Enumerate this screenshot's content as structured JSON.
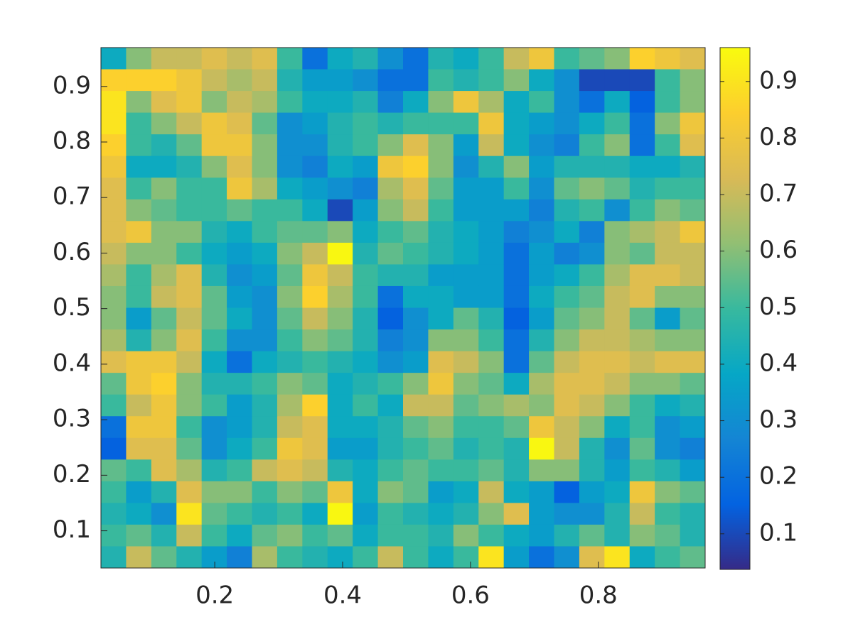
{
  "chart_data": {
    "type": "heatmap",
    "xlim": [
      0.022,
      0.967
    ],
    "ylim": [
      0.033,
      0.97
    ],
    "xticks": [
      0.2,
      0.4,
      0.6,
      0.8
    ],
    "yticks": [
      0.1,
      0.2,
      0.3,
      0.4,
      0.5,
      0.6,
      0.7,
      0.8,
      0.9
    ],
    "clim": [
      0.037,
      0.96
    ],
    "cticks": [
      0.1,
      0.2,
      0.3,
      0.4,
      0.5,
      0.6,
      0.7,
      0.8,
      0.9
    ],
    "colormap": [
      "#352a87",
      "#0363e1",
      "#1485d4",
      "#06a7c6",
      "#38b99e",
      "#92bf73",
      "#d9ba56",
      "#fcce2e",
      "#f9fb0e"
    ],
    "z": [
      [
        0.4,
        0.6,
        0.7,
        0.7,
        0.75,
        0.7,
        0.75,
        0.5,
        0.2,
        0.4,
        0.45,
        0.3,
        0.2,
        0.45,
        0.4,
        0.5,
        0.7,
        0.8,
        0.5,
        0.55,
        0.6,
        0.85,
        0.8,
        0.75
      ],
      [
        0.85,
        0.85,
        0.85,
        0.8,
        0.7,
        0.65,
        0.7,
        0.45,
        0.35,
        0.35,
        0.3,
        0.2,
        0.2,
        0.5,
        0.45,
        0.5,
        0.6,
        0.4,
        0.3,
        0.1,
        0.1,
        0.1,
        0.5,
        0.6
      ],
      [
        0.9,
        0.6,
        0.75,
        0.8,
        0.6,
        0.7,
        0.65,
        0.5,
        0.4,
        0.4,
        0.45,
        0.25,
        0.4,
        0.6,
        0.8,
        0.65,
        0.4,
        0.5,
        0.3,
        0.2,
        0.4,
        0.15,
        0.5,
        0.6
      ],
      [
        0.9,
        0.5,
        0.6,
        0.7,
        0.8,
        0.75,
        0.55,
        0.3,
        0.35,
        0.45,
        0.5,
        0.45,
        0.5,
        0.5,
        0.5,
        0.8,
        0.4,
        0.35,
        0.3,
        0.4,
        0.5,
        0.2,
        0.6,
        0.8
      ],
      [
        0.85,
        0.5,
        0.45,
        0.55,
        0.8,
        0.8,
        0.6,
        0.3,
        0.3,
        0.45,
        0.5,
        0.6,
        0.75,
        0.6,
        0.35,
        0.7,
        0.4,
        0.3,
        0.25,
        0.5,
        0.6,
        0.2,
        0.5,
        0.75
      ],
      [
        0.8,
        0.4,
        0.4,
        0.45,
        0.6,
        0.75,
        0.6,
        0.3,
        0.25,
        0.4,
        0.35,
        0.8,
        0.85,
        0.6,
        0.3,
        0.45,
        0.6,
        0.35,
        0.45,
        0.45,
        0.45,
        0.4,
        0.4,
        0.45
      ],
      [
        0.75,
        0.5,
        0.6,
        0.5,
        0.5,
        0.8,
        0.65,
        0.4,
        0.35,
        0.3,
        0.25,
        0.65,
        0.75,
        0.55,
        0.35,
        0.35,
        0.5,
        0.3,
        0.55,
        0.6,
        0.55,
        0.45,
        0.5,
        0.5
      ],
      [
        0.75,
        0.6,
        0.55,
        0.5,
        0.5,
        0.55,
        0.5,
        0.5,
        0.4,
        0.1,
        0.35,
        0.6,
        0.7,
        0.5,
        0.35,
        0.35,
        0.35,
        0.25,
        0.45,
        0.5,
        0.3,
        0.5,
        0.6,
        0.55
      ],
      [
        0.75,
        0.8,
        0.6,
        0.6,
        0.45,
        0.4,
        0.5,
        0.55,
        0.55,
        0.6,
        0.4,
        0.5,
        0.55,
        0.45,
        0.4,
        0.35,
        0.25,
        0.3,
        0.4,
        0.25,
        0.6,
        0.65,
        0.7,
        0.8
      ],
      [
        0.7,
        0.6,
        0.6,
        0.5,
        0.4,
        0.35,
        0.4,
        0.6,
        0.7,
        0.95,
        0.45,
        0.55,
        0.5,
        0.45,
        0.4,
        0.35,
        0.2,
        0.35,
        0.25,
        0.3,
        0.6,
        0.55,
        0.7,
        0.7
      ],
      [
        0.65,
        0.5,
        0.65,
        0.75,
        0.45,
        0.3,
        0.35,
        0.55,
        0.8,
        0.7,
        0.5,
        0.45,
        0.45,
        0.35,
        0.35,
        0.35,
        0.2,
        0.35,
        0.4,
        0.5,
        0.65,
        0.75,
        0.75,
        0.7
      ],
      [
        0.6,
        0.5,
        0.7,
        0.75,
        0.55,
        0.35,
        0.3,
        0.6,
        0.85,
        0.65,
        0.5,
        0.2,
        0.4,
        0.4,
        0.35,
        0.35,
        0.2,
        0.4,
        0.5,
        0.55,
        0.7,
        0.75,
        0.6,
        0.6
      ],
      [
        0.6,
        0.35,
        0.55,
        0.7,
        0.55,
        0.4,
        0.3,
        0.55,
        0.7,
        0.6,
        0.45,
        0.15,
        0.3,
        0.4,
        0.55,
        0.45,
        0.15,
        0.35,
        0.55,
        0.6,
        0.7,
        0.55,
        0.35,
        0.55
      ],
      [
        0.65,
        0.45,
        0.6,
        0.75,
        0.5,
        0.3,
        0.3,
        0.5,
        0.6,
        0.55,
        0.45,
        0.25,
        0.3,
        0.6,
        0.6,
        0.5,
        0.2,
        0.45,
        0.6,
        0.7,
        0.7,
        0.65,
        0.6,
        0.6
      ],
      [
        0.75,
        0.8,
        0.8,
        0.7,
        0.4,
        0.2,
        0.4,
        0.45,
        0.5,
        0.45,
        0.4,
        0.3,
        0.35,
        0.75,
        0.7,
        0.6,
        0.2,
        0.55,
        0.7,
        0.75,
        0.75,
        0.7,
        0.75,
        0.75
      ],
      [
        0.55,
        0.8,
        0.85,
        0.6,
        0.45,
        0.45,
        0.5,
        0.6,
        0.55,
        0.4,
        0.45,
        0.5,
        0.6,
        0.8,
        0.6,
        0.55,
        0.4,
        0.65,
        0.75,
        0.75,
        0.7,
        0.6,
        0.6,
        0.55
      ],
      [
        0.5,
        0.7,
        0.8,
        0.6,
        0.5,
        0.35,
        0.45,
        0.65,
        0.85,
        0.4,
        0.5,
        0.4,
        0.7,
        0.7,
        0.55,
        0.6,
        0.65,
        0.6,
        0.75,
        0.7,
        0.6,
        0.5,
        0.4,
        0.45
      ],
      [
        0.2,
        0.8,
        0.8,
        0.5,
        0.3,
        0.35,
        0.45,
        0.7,
        0.75,
        0.4,
        0.4,
        0.45,
        0.55,
        0.6,
        0.5,
        0.5,
        0.55,
        0.8,
        0.7,
        0.6,
        0.4,
        0.5,
        0.3,
        0.35
      ],
      [
        0.15,
        0.75,
        0.75,
        0.55,
        0.3,
        0.4,
        0.5,
        0.8,
        0.75,
        0.35,
        0.35,
        0.45,
        0.5,
        0.55,
        0.45,
        0.5,
        0.45,
        0.95,
        0.7,
        0.45,
        0.3,
        0.55,
        0.3,
        0.25
      ],
      [
        0.55,
        0.5,
        0.75,
        0.65,
        0.45,
        0.5,
        0.7,
        0.75,
        0.7,
        0.45,
        0.4,
        0.5,
        0.55,
        0.5,
        0.5,
        0.55,
        0.45,
        0.6,
        0.6,
        0.45,
        0.35,
        0.5,
        0.45,
        0.35
      ],
      [
        0.5,
        0.35,
        0.45,
        0.75,
        0.6,
        0.6,
        0.5,
        0.6,
        0.55,
        0.8,
        0.4,
        0.6,
        0.55,
        0.35,
        0.4,
        0.7,
        0.4,
        0.35,
        0.15,
        0.35,
        0.4,
        0.8,
        0.6,
        0.55
      ],
      [
        0.45,
        0.4,
        0.3,
        0.9,
        0.55,
        0.5,
        0.45,
        0.5,
        0.4,
        0.95,
        0.35,
        0.5,
        0.45,
        0.4,
        0.45,
        0.6,
        0.75,
        0.35,
        0.3,
        0.3,
        0.45,
        0.7,
        0.5,
        0.45
      ],
      [
        0.5,
        0.55,
        0.45,
        0.7,
        0.5,
        0.4,
        0.55,
        0.6,
        0.5,
        0.55,
        0.4,
        0.5,
        0.5,
        0.45,
        0.6,
        0.5,
        0.4,
        0.35,
        0.45,
        0.55,
        0.45,
        0.6,
        0.55,
        0.45
      ],
      [
        0.45,
        0.7,
        0.55,
        0.45,
        0.35,
        0.25,
        0.65,
        0.5,
        0.45,
        0.4,
        0.5,
        0.7,
        0.5,
        0.4,
        0.5,
        0.9,
        0.35,
        0.2,
        0.3,
        0.75,
        0.9,
        0.4,
        0.5,
        0.55
      ]
    ]
  }
}
